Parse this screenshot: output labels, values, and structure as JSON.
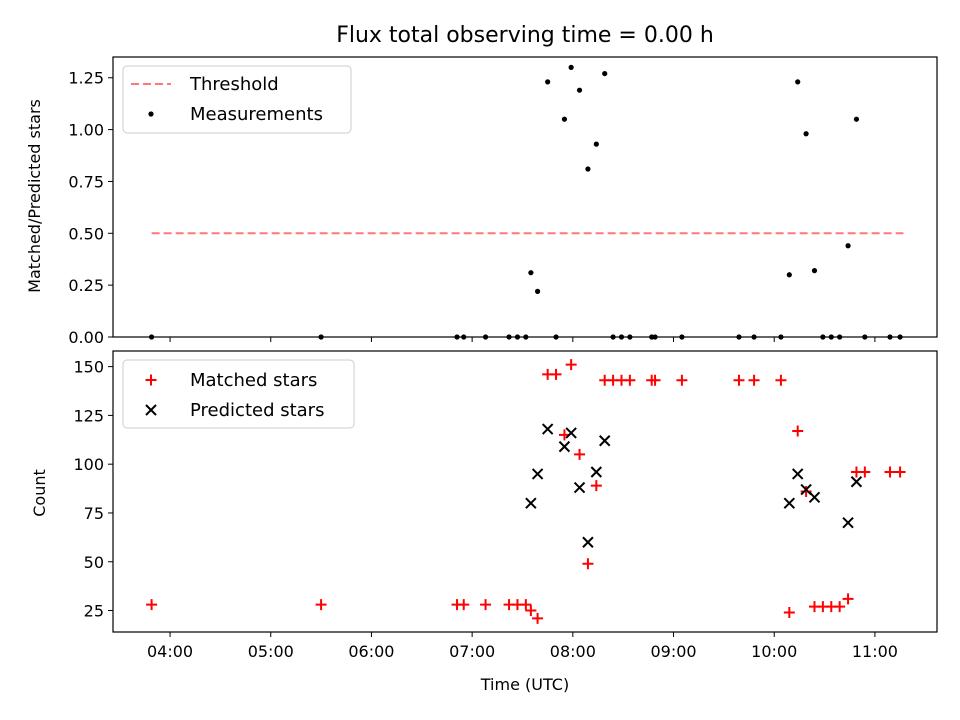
{
  "chart_data": [
    {
      "type": "scatter",
      "title": "Flux total observing time = 0.00 h",
      "ylabel": "Matched/Predicted stars",
      "xlabel": "",
      "ylim": [
        0,
        1.35
      ],
      "yticks": [
        0.0,
        0.25,
        0.5,
        0.75,
        1.0,
        1.25
      ],
      "ytick_labels": [
        "0.00",
        "0.25",
        "0.50",
        "0.75",
        "1.00",
        "1.25"
      ],
      "grid": false,
      "legend_position": "upper-left",
      "threshold": {
        "name": "Threshold",
        "value": 0.5,
        "x_range": [
          "03:49",
          "11:17"
        ],
        "color": "#ff7777"
      },
      "series": [
        {
          "name": "Measurements",
          "color": "#000000",
          "marker": "dot",
          "points": [
            [
              "03:49",
              0.0
            ],
            [
              "05:30",
              0.0
            ],
            [
              "06:51",
              0.0
            ],
            [
              "06:55",
              0.0
            ],
            [
              "07:08",
              0.0
            ],
            [
              "07:22",
              0.0
            ],
            [
              "07:27",
              0.0
            ],
            [
              "07:32",
              0.0
            ],
            [
              "07:35",
              0.31
            ],
            [
              "07:39",
              0.22
            ],
            [
              "07:45",
              1.23
            ],
            [
              "07:50",
              0.0
            ],
            [
              "07:55",
              1.05
            ],
            [
              "07:59",
              1.3
            ],
            [
              "08:04",
              1.19
            ],
            [
              "08:09",
              0.81
            ],
            [
              "08:14",
              0.93
            ],
            [
              "08:19",
              1.27
            ],
            [
              "08:24",
              0.0
            ],
            [
              "08:29",
              0.0
            ],
            [
              "08:34",
              0.0
            ],
            [
              "08:47",
              0.0
            ],
            [
              "08:49",
              0.0
            ],
            [
              "09:05",
              0.0
            ],
            [
              "09:39",
              0.0
            ],
            [
              "09:48",
              0.0
            ],
            [
              "10:04",
              0.0
            ],
            [
              "10:09",
              0.3
            ],
            [
              "10:14",
              1.23
            ],
            [
              "10:19",
              0.98
            ],
            [
              "10:24",
              0.32
            ],
            [
              "10:29",
              0.0
            ],
            [
              "10:34",
              0.0
            ],
            [
              "10:39",
              0.0
            ],
            [
              "10:44",
              0.44
            ],
            [
              "10:49",
              1.05
            ],
            [
              "10:54",
              0.0
            ],
            [
              "11:09",
              0.0
            ],
            [
              "11:15",
              0.0
            ]
          ]
        }
      ]
    },
    {
      "type": "scatter",
      "title": "",
      "ylabel": "Count",
      "xlabel": "Time (UTC)",
      "ylim": [
        14,
        158
      ],
      "yticks": [
        25,
        50,
        75,
        100,
        125,
        150
      ],
      "ytick_labels": [
        "25",
        "50",
        "75",
        "100",
        "125",
        "150"
      ],
      "xlim": [
        "03:26",
        "11:37"
      ],
      "xticks": [
        "04:00",
        "05:00",
        "06:00",
        "07:00",
        "08:00",
        "09:00",
        "10:00",
        "11:00"
      ],
      "xtick_labels": [
        "04:00",
        "05:00",
        "06:00",
        "07:00",
        "08:00",
        "09:00",
        "10:00",
        "11:00"
      ],
      "grid": false,
      "legend_position": "upper-left",
      "series": [
        {
          "name": "Matched stars",
          "color": "#ff0000",
          "marker": "plus",
          "points": [
            [
              "03:49",
              28
            ],
            [
              "05:30",
              28
            ],
            [
              "06:51",
              28
            ],
            [
              "06:55",
              28
            ],
            [
              "07:08",
              28
            ],
            [
              "07:22",
              28
            ],
            [
              "07:27",
              28
            ],
            [
              "07:32",
              28
            ],
            [
              "07:35",
              25
            ],
            [
              "07:39",
              21
            ],
            [
              "07:45",
              146
            ],
            [
              "07:50",
              146
            ],
            [
              "07:55",
              115
            ],
            [
              "07:59",
              151
            ],
            [
              "08:04",
              105
            ],
            [
              "08:09",
              49
            ],
            [
              "08:14",
              89
            ],
            [
              "08:19",
              143
            ],
            [
              "08:24",
              143
            ],
            [
              "08:29",
              143
            ],
            [
              "08:34",
              143
            ],
            [
              "08:47",
              143
            ],
            [
              "08:49",
              143
            ],
            [
              "09:05",
              143
            ],
            [
              "09:39",
              143
            ],
            [
              "09:48",
              143
            ],
            [
              "10:04",
              143
            ],
            [
              "10:09",
              24
            ],
            [
              "10:14",
              117
            ],
            [
              "10:19",
              86
            ],
            [
              "10:24",
              27
            ],
            [
              "10:29",
              27
            ],
            [
              "10:34",
              27
            ],
            [
              "10:39",
              27
            ],
            [
              "10:44",
              31
            ],
            [
              "10:49",
              96
            ],
            [
              "10:54",
              96
            ],
            [
              "11:09",
              96
            ],
            [
              "11:15",
              96
            ]
          ]
        },
        {
          "name": "Predicted stars",
          "color": "#000000",
          "marker": "x",
          "points": [
            [
              "07:35",
              80
            ],
            [
              "07:39",
              95
            ],
            [
              "07:45",
              118
            ],
            [
              "07:55",
              109
            ],
            [
              "07:59",
              116
            ],
            [
              "08:04",
              88
            ],
            [
              "08:09",
              60
            ],
            [
              "08:14",
              96
            ],
            [
              "08:19",
              112
            ],
            [
              "10:09",
              80
            ],
            [
              "10:14",
              95
            ],
            [
              "10:19",
              87
            ],
            [
              "10:24",
              83
            ],
            [
              "10:44",
              70
            ],
            [
              "10:49",
              91
            ]
          ]
        }
      ]
    }
  ]
}
